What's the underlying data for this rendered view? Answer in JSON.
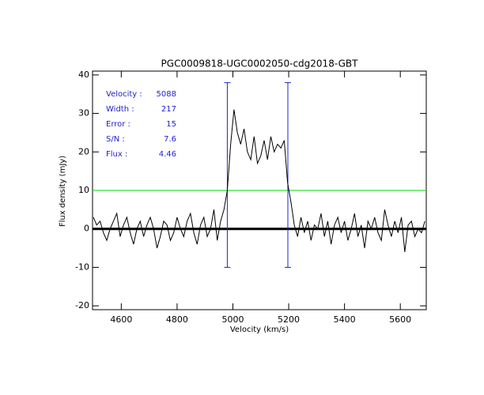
{
  "chart_data": {
    "type": "line",
    "title": "PGC0009818-UGC0002050-cdg2018-GBT",
    "xlabel": "Velocity (km/s)",
    "ylabel": "Flux density (mJy)",
    "x": [
      4500,
      4512,
      4524,
      4536,
      4548,
      4560,
      4572,
      4584,
      4596,
      4608,
      4620,
      4632,
      4644,
      4656,
      4668,
      4680,
      4692,
      4704,
      4716,
      4728,
      4740,
      4752,
      4764,
      4776,
      4788,
      4800,
      4812,
      4824,
      4836,
      4848,
      4860,
      4872,
      4884,
      4896,
      4908,
      4920,
      4932,
      4944,
      4956,
      4968,
      4980,
      4992,
      5004,
      5016,
      5028,
      5040,
      5052,
      5064,
      5076,
      5088,
      5100,
      5112,
      5124,
      5136,
      5148,
      5160,
      5172,
      5184,
      5196,
      5208,
      5220,
      5232,
      5244,
      5256,
      5268,
      5280,
      5292,
      5304,
      5316,
      5328,
      5340,
      5352,
      5364,
      5376,
      5388,
      5400,
      5412,
      5424,
      5436,
      5448,
      5460,
      5472,
      5484,
      5496,
      5508,
      5520,
      5532,
      5544,
      5556,
      5568,
      5580,
      5592,
      5604,
      5616,
      5628,
      5640,
      5652,
      5664,
      5676,
      5688
    ],
    "series": [
      {
        "color": "#000000",
        "values": [
          3,
          1,
          2,
          -1,
          -3,
          0,
          2,
          4,
          -2,
          1,
          3,
          -1,
          -4,
          0,
          2,
          -2,
          1,
          3,
          0,
          -5,
          -2,
          2,
          1,
          -3,
          -1,
          3,
          0,
          -2,
          2,
          4,
          -1,
          -4,
          1,
          3,
          -2,
          0,
          5,
          -3,
          2,
          5,
          10,
          22,
          31,
          25,
          22,
          26,
          20,
          18,
          24,
          17,
          19,
          23,
          18,
          24,
          20,
          22,
          21,
          23,
          12,
          7,
          1,
          -2,
          3,
          -1,
          2,
          -3,
          1,
          0,
          4,
          -2,
          2,
          -4,
          1,
          3,
          -1,
          2,
          -3,
          0,
          4,
          -2,
          1,
          -5,
          2,
          0,
          3,
          -1,
          -3,
          5,
          1,
          -2,
          2,
          -1,
          3,
          -6,
          1,
          2,
          -2,
          0,
          -1,
          2
        ]
      }
    ],
    "xlim": [
      4497,
      5693
    ],
    "ylim": [
      -21,
      41
    ],
    "xticks": [
      4600,
      4800,
      5000,
      5200,
      5400,
      5600
    ],
    "yticks": [
      -20,
      -10,
      0,
      10,
      20,
      30,
      40
    ],
    "threshold": {
      "value": 10,
      "color": "#00dd00"
    },
    "markers": {
      "x": [
        4980,
        5197
      ],
      "range": [
        -10,
        38
      ],
      "color": "#2222cc"
    },
    "annotations": [
      {
        "label": "Velocity :",
        "value": 5088
      },
      {
        "label": "Width :",
        "value": 217
      },
      {
        "label": "Error :",
        "value": 15
      },
      {
        "label": "S/N :",
        "value": 7.6
      },
      {
        "label": "Flux :",
        "value": 4.46
      }
    ]
  }
}
